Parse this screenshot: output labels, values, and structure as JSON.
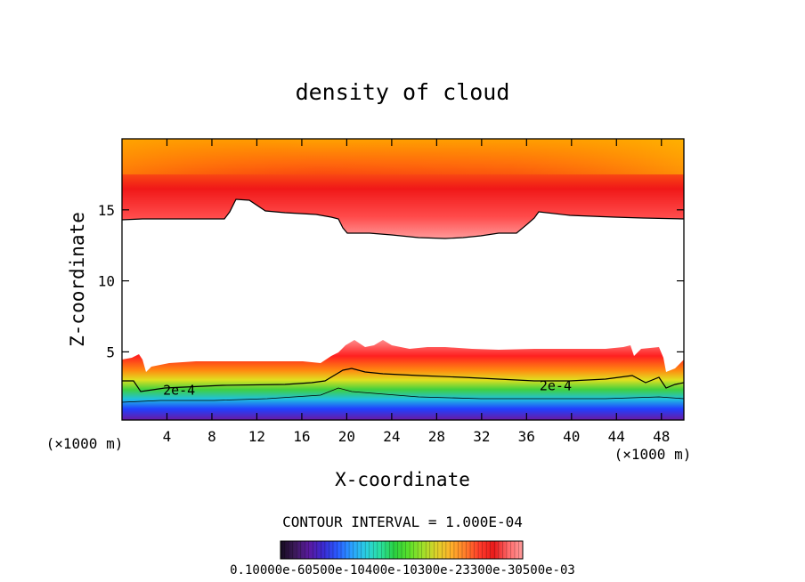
{
  "chart_data": {
    "type": "heatmap",
    "title": "density of cloud",
    "xlabel": "X-coordinate",
    "ylabel": "Z-coordinate",
    "x_unit": "(×1000 m)",
    "x_unit_right": "(×1000 m)",
    "xlim": [
      0,
      50
    ],
    "ylim": [
      0.2,
      20
    ],
    "x_ticks": [
      4,
      8,
      12,
      16,
      20,
      24,
      28,
      32,
      36,
      40,
      44,
      48
    ],
    "y_ticks": [
      5,
      10,
      15
    ],
    "contour_labels": [
      {
        "text": "2e-4",
        "x": 3.5,
        "z": 2.3
      },
      {
        "text": "2e-4",
        "x": 37.0,
        "z": 2.6
      }
    ],
    "contour_interval_text": "CONTOUR INTERVAL = 1.000E-04",
    "colorbar_labels_text": "0.10000e-60500e-10400e-10300e-23300e-30500e-03",
    "colorbar_colors": [
      "#140a1e",
      "#3c1a5a",
      "#5a1aa0",
      "#3a2ad0",
      "#2a5aff",
      "#2aa0ff",
      "#2ad0e0",
      "#2ae0a0",
      "#2ad040",
      "#5ae02a",
      "#a0e02a",
      "#e0d02a",
      "#ffb02a",
      "#ff7a2a",
      "#ff3a2a",
      "#e81a1a",
      "#ff6a6a",
      "#ff9a9a"
    ]
  }
}
